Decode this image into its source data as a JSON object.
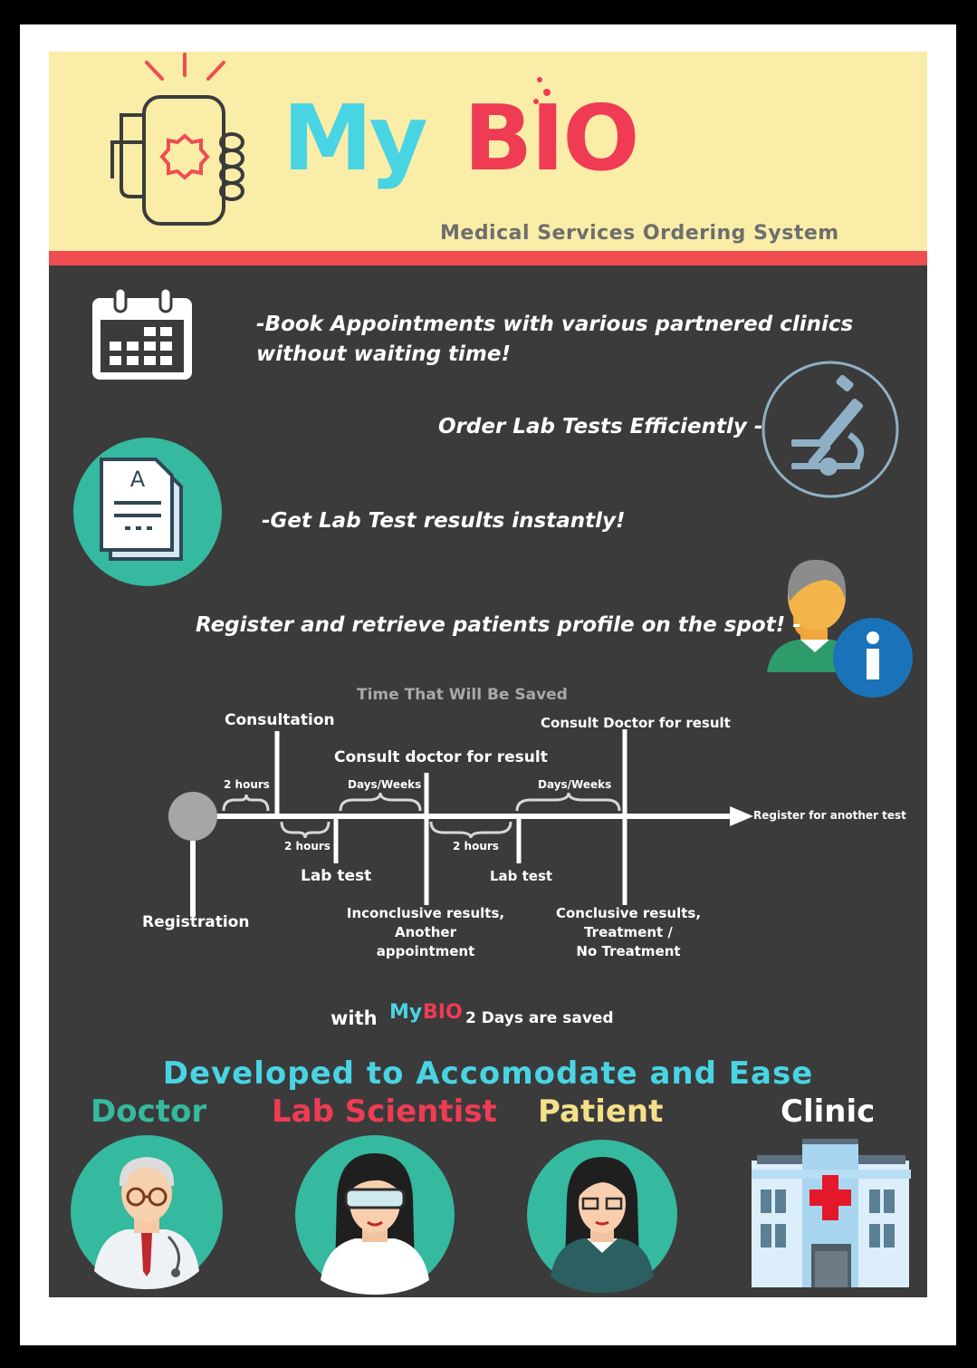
{
  "header": {
    "logo_my": "My",
    "logo_bio": "BIO",
    "subtitle": "Medical Services Ordering System"
  },
  "features": {
    "book_line1": "-Book Appointments with various partnered clinics",
    "book_line2": "without waiting time!",
    "order_lab": "Order Lab Tests Efficiently -",
    "results": "-Get Lab Test results instantly!",
    "register": "Register and retrieve patients profile on the spot! -",
    "document_letter": "A"
  },
  "timeline": {
    "title": "Time That Will Be Saved",
    "labels": {
      "consultation": "Consultation",
      "consult_doctor_1": "Consult doctor for result",
      "consult_doctor_2": "Consult Doctor for result",
      "register_another": "Register for another test",
      "lab_test_1": "Lab test",
      "lab_test_2": "Lab test",
      "registration": "Registration",
      "inconclusive_1": "Inconclusive results,",
      "inconclusive_2": "Another appointment",
      "conclusive_1": "Conclusive results,",
      "conclusive_2": "Treatment /",
      "conclusive_3": "No Treatment"
    },
    "durations": {
      "d1": "2 hours",
      "d2": "2 hours",
      "d3": "Days/Weeks",
      "d4": "2 hours",
      "d5": "Days/Weeks"
    }
  },
  "saved": {
    "prefix": "with",
    "logo_my": "My",
    "logo_bio": "BIO",
    "suffix": "2 Days are saved"
  },
  "roles": {
    "title": "Developed to Accomodate and Ease",
    "doctor": "Doctor",
    "lab_scientist": "Lab Scientist",
    "patient": "Patient",
    "clinic": "Clinic"
  },
  "colors": {
    "header_bg": "#faeda8",
    "accent_red": "#ef4d52",
    "cyan": "#49d4e3",
    "teal": "#35b99f",
    "panel": "#3b3b3b",
    "doctor_text": "#35b99f",
    "lab_text": "#ef3b54",
    "patient_text": "#f5e08a",
    "clinic_text": "#ffffff"
  }
}
